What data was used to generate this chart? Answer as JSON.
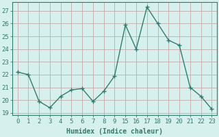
{
  "x_indices": [
    0,
    1,
    2,
    3,
    4,
    5,
    6,
    7,
    8,
    9,
    10,
    11,
    12,
    13,
    14,
    15,
    16,
    17,
    18
  ],
  "y": [
    22.2,
    22.0,
    19.9,
    19.4,
    20.3,
    20.8,
    20.9,
    19.9,
    20.7,
    21.9,
    25.9,
    24.0,
    27.3,
    26.0,
    24.7,
    24.3,
    21.0,
    20.3,
    19.3
  ],
  "x_labels": [
    "0",
    "1",
    "2",
    "3",
    "4",
    "5",
    "6",
    "7",
    "8",
    "9",
    "15",
    "16",
    "17",
    "18",
    "19",
    "20",
    "21",
    "22",
    "23"
  ],
  "line_color": "#2d7d6e",
  "marker": "+",
  "marker_size": 4,
  "marker_linewidth": 1.0,
  "linewidth": 1.0,
  "background_color": "#d6f0ee",
  "grid_color": "#c0ddd9",
  "grid_color_major": "#c8a0a0",
  "tick_color": "#2d7d6e",
  "label_color": "#2d7d6e",
  "xlabel": "Humidex (Indice chaleur)",
  "ylim": [
    18.8,
    27.7
  ],
  "yticks": [
    19,
    20,
    21,
    22,
    23,
    24,
    25,
    26,
    27
  ],
  "spine_color": "#2d7d6e",
  "xlabel_fontsize": 7,
  "tick_fontsize": 6.5
}
